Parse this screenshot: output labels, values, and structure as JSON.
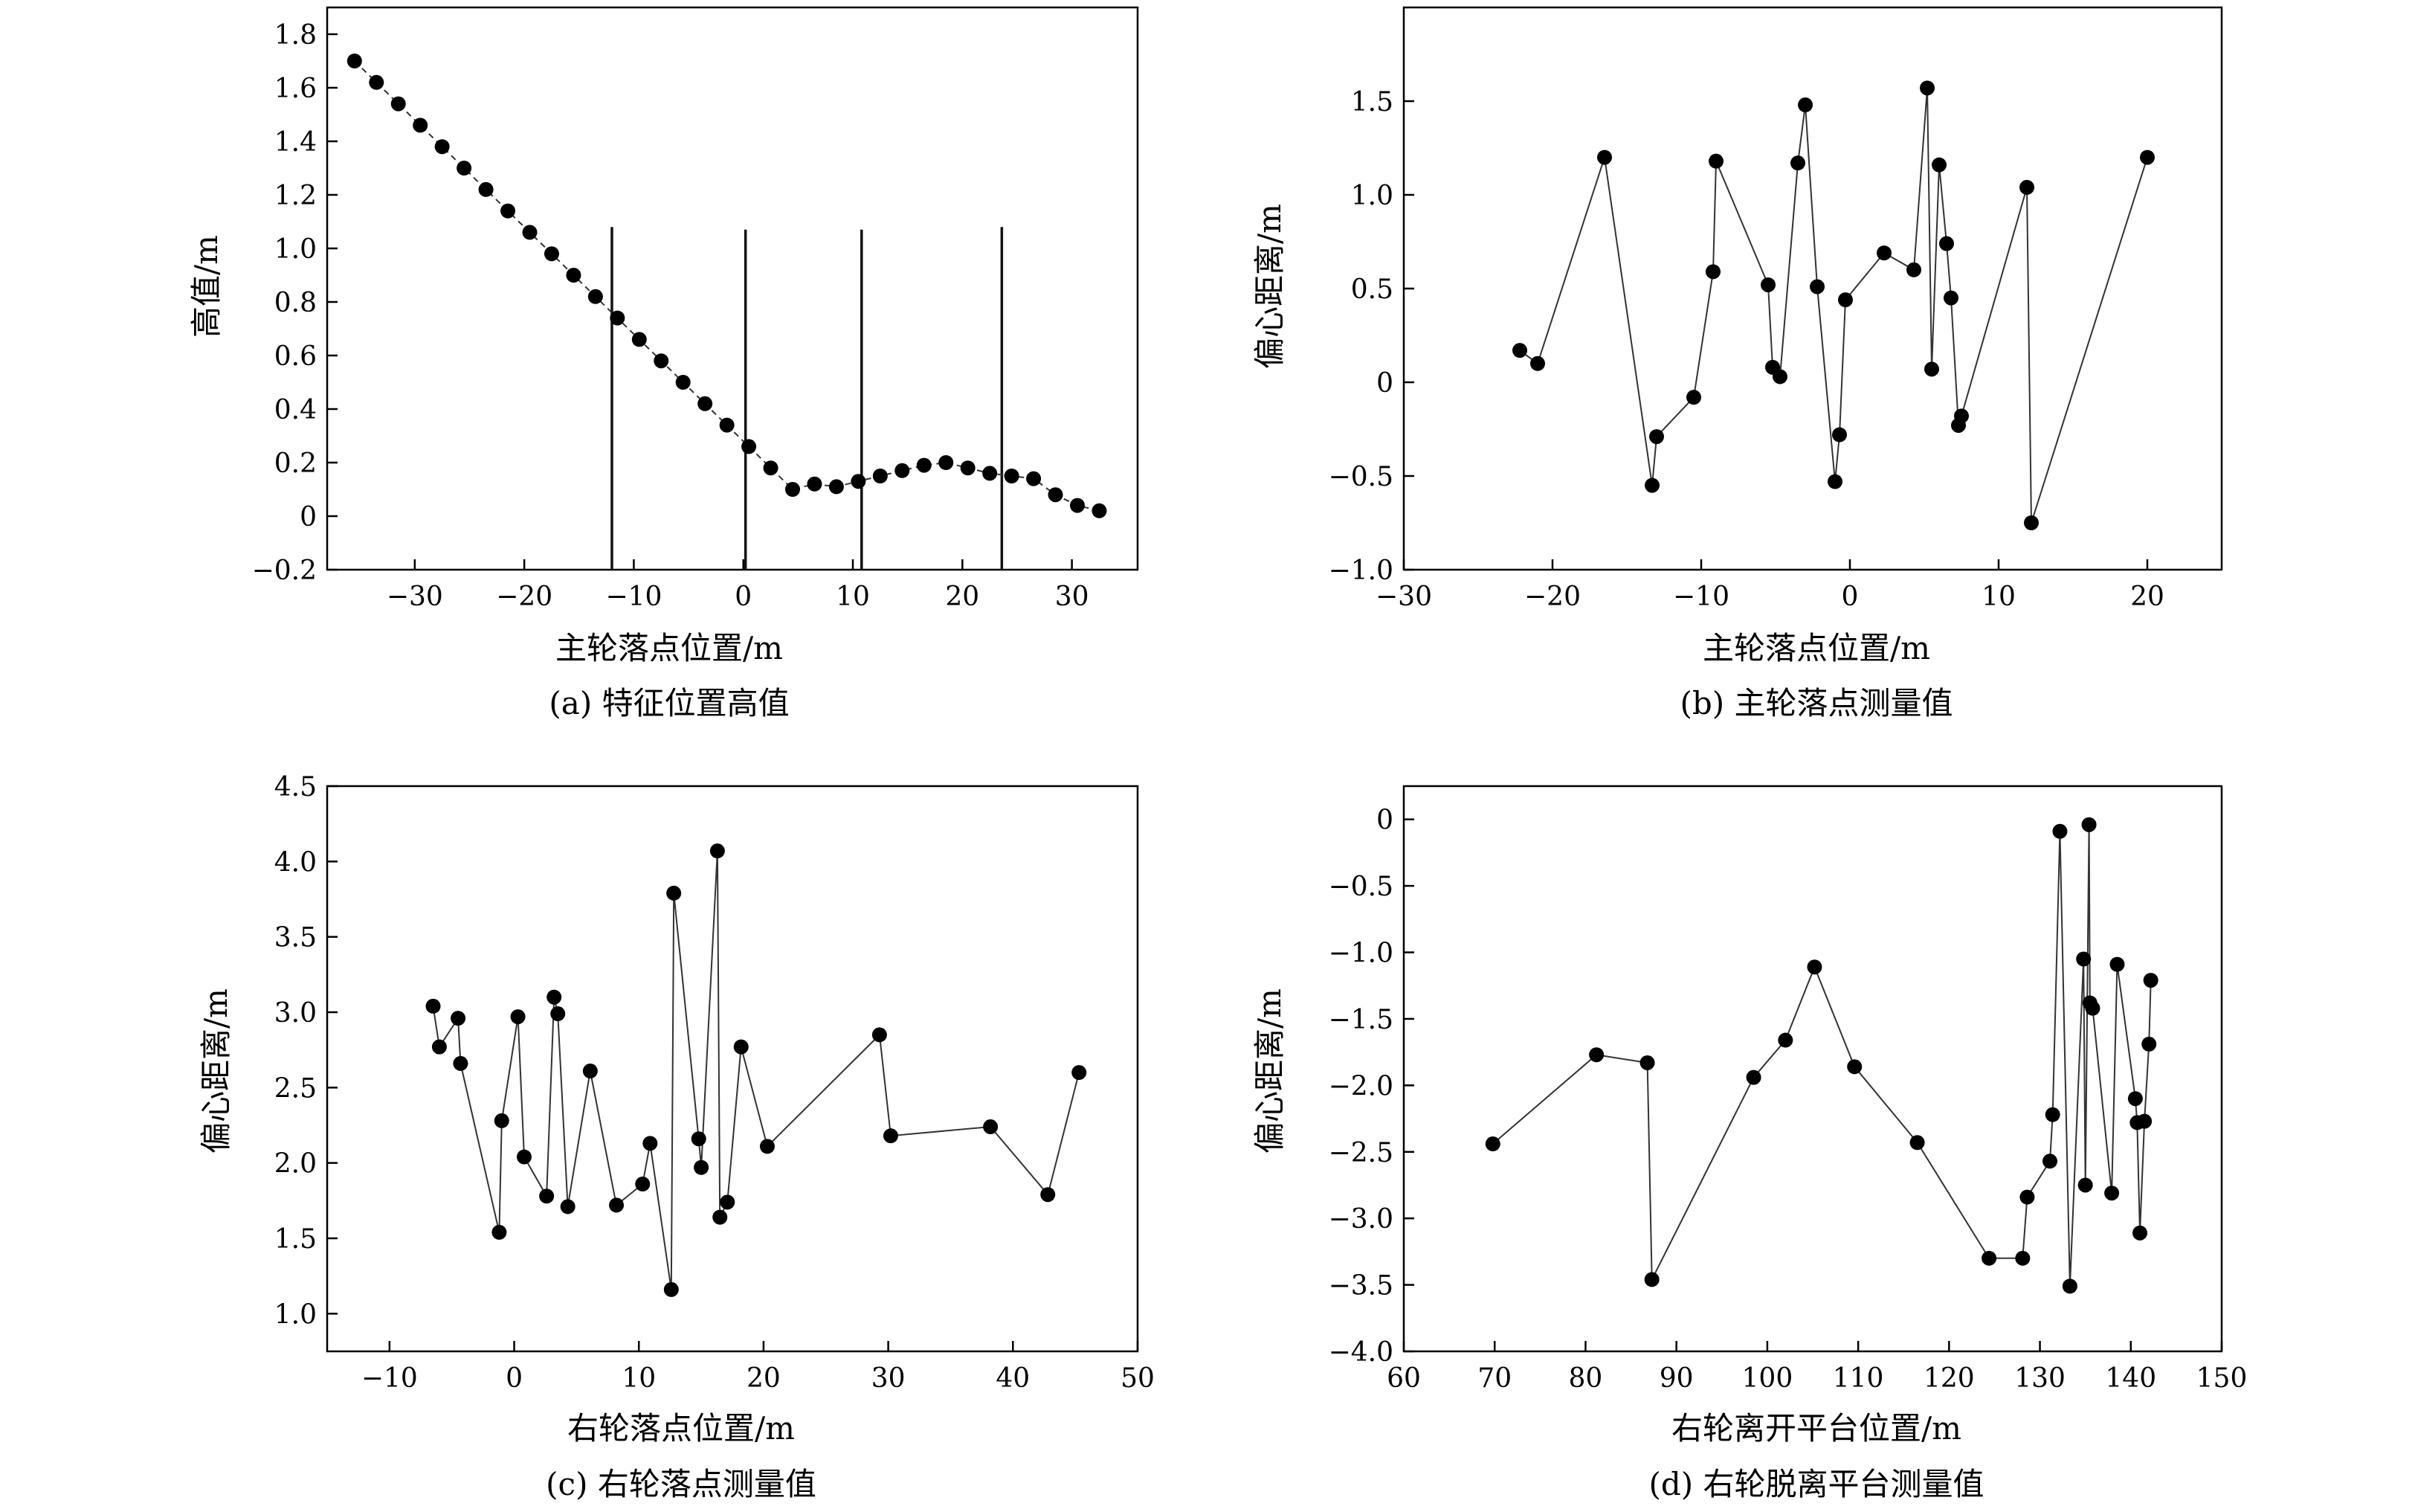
{
  "chart_data": [
    {
      "id": "a",
      "type": "line",
      "caption": "(a) 特征位置高值",
      "xlabel": "主轮落点位置/m",
      "ylabel": "高值/m",
      "xlim": [
        -38,
        36
      ],
      "ylim": [
        -0.2,
        1.9
      ],
      "xticks": [
        -30,
        -20,
        -10,
        0,
        10,
        20,
        30
      ],
      "xtick_labels": [
        "−30",
        "−20",
        "−10",
        "0",
        "10",
        "20",
        "30"
      ],
      "yticks": [
        -0.2,
        0,
        0.2,
        0.4,
        0.6,
        0.8,
        1.0,
        1.2,
        1.4,
        1.6,
        1.8
      ],
      "ytick_labels": [
        "−0.2",
        "0",
        "0.2",
        "0.4",
        "0.6",
        "0.8",
        "1.0",
        "1.2",
        "1.4",
        "1.6",
        "1.8"
      ],
      "line_style": "dashed",
      "series": [
        {
          "x": [
            -35.5,
            -33.5,
            -31.5,
            -29.5,
            -27.5,
            -25.5,
            -23.5,
            -21.5,
            -19.5,
            -17.5,
            -15.5,
            -13.5,
            -11.5,
            -9.5,
            -7.5,
            -5.5,
            -3.5,
            -1.5,
            0.5,
            2.5,
            4.5,
            6.5,
            8.5,
            10.5,
            12.5,
            14.5,
            16.5,
            18.5,
            20.5,
            22.5,
            24.5,
            26.5,
            28.5,
            30.5,
            32.5
          ],
          "y": [
            1.7,
            1.62,
            1.54,
            1.46,
            1.38,
            1.3,
            1.22,
            1.14,
            1.06,
            0.98,
            0.9,
            0.82,
            0.74,
            0.66,
            0.58,
            0.5,
            0.42,
            0.34,
            0.26,
            0.18,
            0.1,
            0.12,
            0.11,
            0.13,
            0.15,
            0.17,
            0.19,
            0.2,
            0.18,
            0.16,
            0.15,
            0.14,
            0.08,
            0.04,
            0.02
          ]
        }
      ],
      "vlines": [
        {
          "x": -12.0,
          "ymin": -0.2,
          "ymax": 1.08
        },
        {
          "x": 0.2,
          "ymin": -0.2,
          "ymax": 1.07
        },
        {
          "x": 10.8,
          "ymin": -0.2,
          "ymax": 1.07
        },
        {
          "x": 23.6,
          "ymin": -0.2,
          "ymax": 1.08
        }
      ]
    },
    {
      "id": "b",
      "type": "line",
      "caption": "(b) 主轮落点测量值",
      "xlabel": "主轮落点位置/m",
      "ylabel": "偏心距离/m",
      "xlim": [
        -30,
        25
      ],
      "ylim": [
        -1.0,
        2.0
      ],
      "xticks": [
        -30,
        -20,
        -10,
        0,
        10,
        20
      ],
      "xtick_labels": [
        "−30",
        "−20",
        "−10",
        "0",
        "10",
        "20"
      ],
      "yticks": [
        -1.0,
        -0.5,
        0,
        0.5,
        1.0,
        1.5
      ],
      "ytick_labels": [
        "−1.0",
        "−0.5",
        "0",
        "0.5",
        "1.0",
        "1.5"
      ],
      "series": [
        {
          "x": [
            -22.2,
            -21.0,
            -16.5,
            -13.3,
            -13.0,
            -10.5,
            -9.2,
            -9.0,
            -5.5,
            -5.2,
            -4.7,
            -3.5,
            -3.0,
            -2.2,
            -1.0,
            -0.7,
            -0.3,
            2.3,
            4.3,
            5.2,
            5.5,
            6.0,
            6.5,
            6.8,
            7.3,
            7.5,
            11.9,
            12.2,
            20.0
          ],
          "y": [
            0.17,
            0.1,
            1.2,
            -0.55,
            -0.29,
            -0.08,
            0.59,
            1.18,
            0.52,
            0.08,
            0.03,
            1.17,
            1.48,
            0.51,
            -0.53,
            -0.28,
            0.44,
            0.69,
            0.6,
            1.57,
            0.07,
            1.16,
            0.74,
            0.45,
            -0.23,
            -0.18,
            1.04,
            -0.75,
            1.2
          ]
        }
      ]
    },
    {
      "id": "c",
      "type": "line",
      "caption": "(c) 右轮落点测量值",
      "xlabel": "右轮落点位置/m",
      "ylabel": "偏心距离/m",
      "xlim": [
        -15,
        50
      ],
      "ylim": [
        0.75,
        4.5
      ],
      "xticks": [
        -10,
        0,
        10,
        20,
        30,
        40,
        50
      ],
      "xtick_labels": [
        "−10",
        "0",
        "10",
        "20",
        "30",
        "40",
        "50"
      ],
      "yticks": [
        1.0,
        1.5,
        2.0,
        2.5,
        3.0,
        3.5,
        4.0,
        4.5
      ],
      "ytick_labels": [
        "1.0",
        "1.5",
        "2.0",
        "2.5",
        "3.0",
        "3.5",
        "4.0",
        "4.5"
      ],
      "series": [
        {
          "x": [
            -6.5,
            -6.0,
            -4.5,
            -4.3,
            -1.2,
            -1.0,
            0.3,
            0.8,
            2.6,
            3.2,
            3.5,
            4.3,
            6.1,
            8.2,
            10.3,
            10.9,
            12.6,
            12.8,
            14.8,
            15.0,
            16.3,
            16.5,
            17.1,
            18.2,
            20.3,
            29.3,
            30.2,
            38.2,
            42.8,
            45.3
          ],
          "y": [
            3.04,
            2.77,
            2.96,
            2.66,
            1.54,
            2.28,
            2.97,
            2.04,
            1.78,
            3.1,
            2.99,
            1.71,
            2.61,
            1.72,
            1.86,
            2.13,
            1.16,
            3.79,
            2.16,
            1.97,
            4.07,
            1.64,
            1.74,
            2.77,
            2.11,
            2.85,
            2.18,
            2.24,
            1.79,
            2.6
          ]
        }
      ]
    },
    {
      "id": "d",
      "type": "line",
      "caption": "(d) 右轮脱离平台测量值",
      "xlabel": "右轮离开平台位置/m",
      "ylabel": "偏心距离/m",
      "xlim": [
        60,
        150
      ],
      "ylim": [
        -4.0,
        0.25
      ],
      "xticks": [
        60,
        70,
        80,
        90,
        100,
        110,
        120,
        130,
        140,
        150
      ],
      "xtick_labels": [
        "60",
        "70",
        "80",
        "90",
        "100",
        "110",
        "120",
        "130",
        "140",
        "150"
      ],
      "yticks": [
        -4.0,
        -3.5,
        -3.0,
        -2.5,
        -2.0,
        -1.5,
        -1.0,
        -0.5,
        0
      ],
      "ytick_labels": [
        "−4.0",
        "−3.5",
        "−3.0",
        "−2.5",
        "−2.0",
        "−1.5",
        "−1.0",
        "−0.5",
        "0"
      ],
      "series": [
        {
          "x": [
            69.8,
            81.2,
            86.8,
            87.3,
            98.5,
            102.0,
            105.2,
            109.6,
            116.5,
            124.4,
            128.1,
            128.6,
            131.1,
            131.4,
            132.2,
            133.3,
            134.8,
            135.0,
            135.4,
            135.5,
            135.8,
            137.9,
            138.5,
            140.5,
            140.7,
            141.0,
            141.5,
            142.0,
            142.2
          ],
          "y": [
            -2.44,
            -1.77,
            -1.83,
            -3.46,
            -1.94,
            -1.66,
            -1.11,
            -1.86,
            -2.43,
            -3.3,
            -3.3,
            -2.84,
            -2.57,
            -2.22,
            -0.09,
            -3.51,
            -1.05,
            -2.75,
            -0.04,
            -1.38,
            -1.42,
            -2.81,
            -1.09,
            -2.1,
            -2.28,
            -3.11,
            -2.27,
            -1.69,
            -1.21
          ]
        }
      ]
    }
  ]
}
